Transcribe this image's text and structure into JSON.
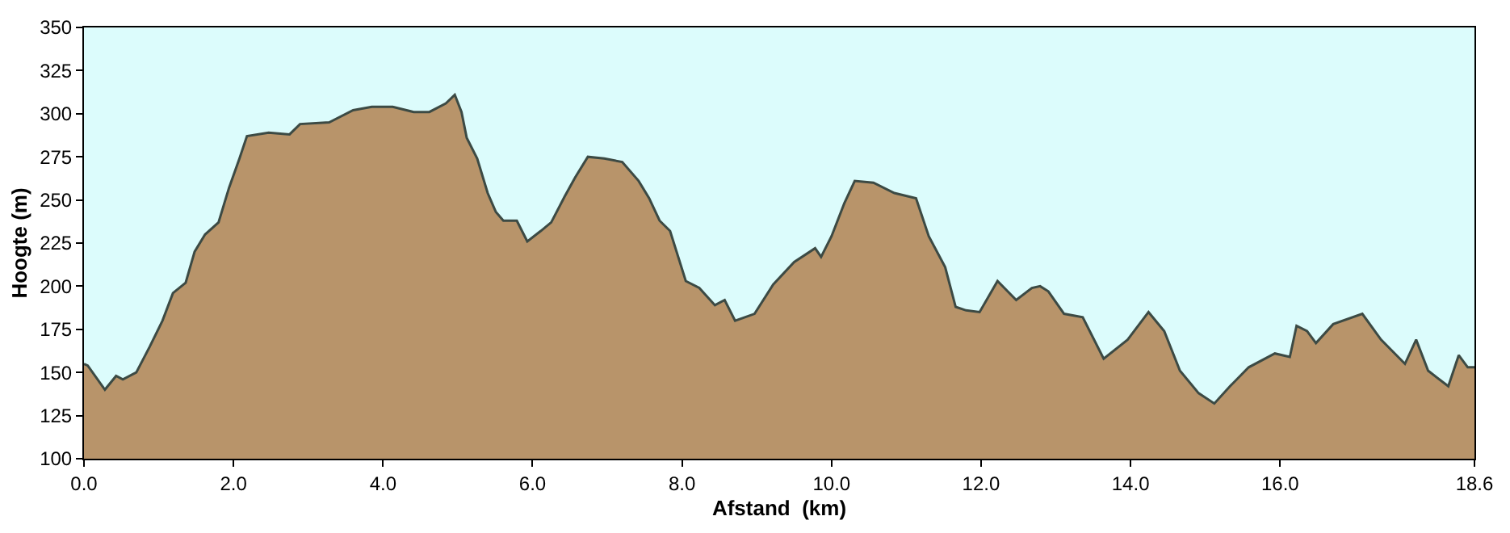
{
  "chart_data": {
    "type": "area",
    "xlabel": "Afstand  (km)",
    "ylabel": "Hoogte (m)",
    "xlim": [
      0,
      18.6
    ],
    "ylim": [
      100,
      350
    ],
    "xticks": [
      {
        "value": 0,
        "label": "0.0"
      },
      {
        "value": 2,
        "label": "2.0"
      },
      {
        "value": 4,
        "label": "4.0"
      },
      {
        "value": 6,
        "label": "6.0"
      },
      {
        "value": 8,
        "label": "8.0"
      },
      {
        "value": 10,
        "label": "10.0"
      },
      {
        "value": 12,
        "label": "12.0"
      },
      {
        "value": 14,
        "label": "14.0"
      },
      {
        "value": 16,
        "label": "16.0"
      },
      {
        "value": 18.6,
        "label": "18.6"
      }
    ],
    "yticks": [
      100,
      125,
      150,
      175,
      200,
      225,
      250,
      275,
      300,
      325,
      350
    ],
    "grid": false,
    "series": [
      {
        "color": "#b8946a",
        "x": [
          0,
          0.05,
          0.28,
          0.43,
          0.52,
          0.7,
          0.88,
          1.05,
          1.19,
          1.36,
          1.48,
          1.62,
          1.8,
          1.94,
          2.08,
          2.18,
          2.47,
          2.75,
          2.89,
          3.28,
          3.6,
          3.85,
          4.13,
          4.41,
          4.62,
          4.84,
          4.96,
          5.05,
          5.12,
          5.26,
          5.4,
          5.51,
          5.61,
          5.79,
          5.93,
          6.11,
          6.25,
          6.43,
          6.57,
          6.74,
          6.96,
          7.2,
          7.42,
          7.56,
          7.7,
          7.84,
          8.05,
          8.23,
          8.44,
          8.57,
          8.71,
          8.97,
          9.22,
          9.5,
          9.78,
          9.86,
          10.0,
          10.17,
          10.31,
          10.56,
          10.84,
          11.13,
          11.3,
          11.52,
          11.66,
          11.8,
          11.98,
          12.22,
          12.47,
          12.68,
          12.79,
          12.9,
          13.11,
          13.36,
          13.64,
          13.96,
          14.24,
          14.45,
          14.66,
          14.91,
          15.12,
          15.33,
          15.58,
          15.93,
          16.13,
          16.22,
          16.36,
          16.48,
          16.71,
          17.1,
          17.35,
          17.67,
          17.82,
          17.98,
          18.25,
          18.39,
          18.51,
          18.6
        ],
        "values": [
          155,
          154,
          140,
          148,
          146,
          150,
          165,
          180,
          196,
          202,
          220,
          230,
          237,
          257,
          274,
          287,
          289,
          288,
          294,
          295,
          302,
          304,
          304,
          301,
          301,
          306,
          311,
          301,
          286,
          274,
          254,
          243,
          238,
          238,
          226,
          232,
          237,
          252,
          263,
          275,
          274,
          272,
          261,
          251,
          238,
          232,
          203,
          199,
          189,
          192,
          180,
          184,
          201,
          214,
          222,
          217,
          229,
          248,
          261,
          260,
          254,
          251,
          229,
          211,
          188,
          186,
          185,
          203,
          192,
          199,
          200,
          197,
          184,
          182,
          158,
          169,
          185,
          174,
          151,
          138,
          132,
          142,
          153,
          161,
          159,
          177,
          174,
          167,
          178,
          184,
          169,
          155,
          169,
          151,
          142,
          160,
          153,
          153
        ]
      }
    ]
  }
}
